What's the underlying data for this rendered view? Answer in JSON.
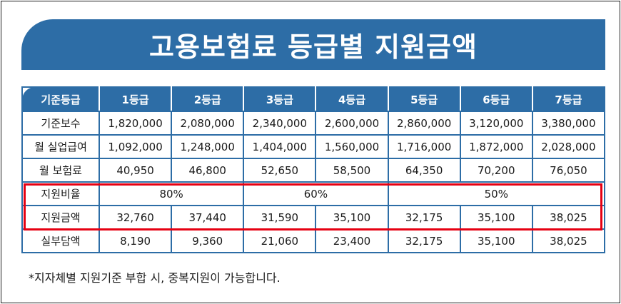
{
  "title": "고용보험료 등급별 지원금액",
  "table": {
    "headers": [
      "기준등급",
      "1등급",
      "2등급",
      "3등급",
      "4등급",
      "5등급",
      "6등급",
      "7등급"
    ],
    "rows": {
      "base_pay": {
        "label": "기준보수",
        "values": [
          "1,820,000",
          "2,080,000",
          "2,340,000",
          "2,600,000",
          "2,860,000",
          "3,120,000",
          "3,380,000"
        ]
      },
      "monthly_unemployment": {
        "label": "월 실업급여",
        "values": [
          "1,092,000",
          "1,248,000",
          "1,404,000",
          "1,560,000",
          "1,716,000",
          "1,872,000",
          "2,028,000"
        ]
      },
      "monthly_premium": {
        "label": "월 보험료",
        "values": [
          "40,950",
          "46,800",
          "52,650",
          "58,500",
          "64,350",
          "70,200",
          "76,050"
        ]
      },
      "support_rate": {
        "label": "지원비율",
        "groups": [
          "80%",
          "60%",
          "50%"
        ]
      },
      "support_amount": {
        "label": "지원금액",
        "values": [
          "32,760",
          "37,440",
          "31,590",
          "35,100",
          "32,175",
          "35,100",
          "38,025"
        ]
      },
      "actual_burden": {
        "label": "실부담액",
        "values": [
          "8,190",
          "9,360",
          "21,060",
          "23,400",
          "32,175",
          "35,100",
          "38,025"
        ]
      }
    }
  },
  "footnote": "*지자체별 지원기준 부합 시, 중복지원이 가능합니다.",
  "colors": {
    "header_blue": "#2d6da6",
    "highlight_red": "#e60012"
  }
}
